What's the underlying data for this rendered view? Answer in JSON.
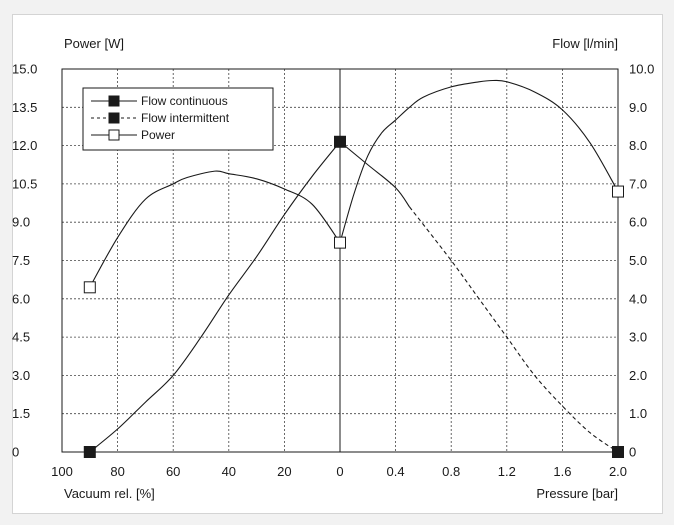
{
  "chart_data": {
    "type": "line",
    "y_left_label": "Power [W]",
    "y_right_label": "Flow [l/min]",
    "x_left_label": "Vacuum rel. [%]",
    "x_right_label": "Pressure [bar]",
    "y_left_ticks": [
      "0",
      "1.5",
      "3.0",
      "4.5",
      "6.0",
      "7.5",
      "9.0",
      "10.5",
      "12.0",
      "13.5",
      "15.0"
    ],
    "y_right_ticks": [
      "0",
      "1.0",
      "2.0",
      "3.0",
      "4.0",
      "5.0",
      "6.0",
      "7.0",
      "8.0",
      "9.0",
      "10.0"
    ],
    "x_ticks": [
      "100",
      "80",
      "60",
      "40",
      "20",
      "0",
      "0.4",
      "0.8",
      "1.2",
      "1.6",
      "2.0"
    ],
    "y_left_range": [
      0,
      15
    ],
    "y_right_range": [
      0,
      10
    ],
    "x_note": "Left half: vacuum rel. % from 100 to 0; right half: pressure bar from 0 to 2.0",
    "grid": true,
    "legend_position": "top-left",
    "series": [
      {
        "name": "Flow continuous",
        "axis": "right",
        "style": "solid",
        "marker": "filled-square",
        "segments": [
          {
            "side": "vacuum",
            "points": [
              [
                90,
                0
              ],
              [
                80,
                0.6
              ],
              [
                70,
                1.3
              ],
              [
                60,
                2.0
              ],
              [
                50,
                3.0
              ],
              [
                40,
                4.1
              ],
              [
                30,
                5.1
              ],
              [
                20,
                6.2
              ],
              [
                10,
                7.2
              ],
              [
                0,
                8.1
              ]
            ]
          },
          {
            "side": "pressure",
            "points": [
              [
                0,
                8.1
              ],
              [
                0.2,
                7.5
              ],
              [
                0.4,
                6.9
              ],
              [
                0.5,
                6.4
              ]
            ]
          }
        ],
        "markers": [
          {
            "side": "vacuum",
            "x": 90,
            "y": 0
          },
          {
            "side": "vacuum",
            "x": 0,
            "y": 8.1
          }
        ]
      },
      {
        "name": "Flow intermittent",
        "axis": "right",
        "style": "dashed",
        "marker": "filled-square",
        "segments": [
          {
            "side": "pressure",
            "points": [
              [
                0.5,
                6.4
              ],
              [
                0.8,
                5.0
              ],
              [
                1.0,
                4.0
              ],
              [
                1.2,
                3.0
              ],
              [
                1.4,
                2.0
              ],
              [
                1.6,
                1.2
              ],
              [
                1.8,
                0.5
              ],
              [
                2.0,
                0
              ]
            ]
          }
        ],
        "markers": [
          {
            "side": "pressure",
            "x": 2.0,
            "y": 0
          }
        ]
      },
      {
        "name": "Power",
        "axis": "left",
        "style": "solid",
        "marker": "open-square",
        "segments": [
          {
            "side": "vacuum",
            "points": [
              [
                90,
                6.45
              ],
              [
                80,
                8.4
              ],
              [
                70,
                9.9
              ],
              [
                60,
                10.5
              ],
              [
                55,
                10.75
              ],
              [
                45,
                11.0
              ],
              [
                40,
                10.9
              ],
              [
                30,
                10.7
              ],
              [
                20,
                10.3
              ],
              [
                10,
                9.7
              ],
              [
                0,
                8.2
              ]
            ]
          },
          {
            "side": "pressure",
            "points": [
              [
                0,
                8.2
              ],
              [
                0.1,
                10.1
              ],
              [
                0.2,
                11.6
              ],
              [
                0.3,
                12.5
              ],
              [
                0.4,
                13.0
              ],
              [
                0.5,
                13.5
              ],
              [
                0.6,
                13.9
              ],
              [
                0.8,
                14.3
              ],
              [
                1.0,
                14.5
              ],
              [
                1.1,
                14.55
              ],
              [
                1.2,
                14.5
              ],
              [
                1.4,
                14.1
              ],
              [
                1.6,
                13.4
              ],
              [
                1.8,
                12.1
              ],
              [
                2.0,
                10.2
              ]
            ]
          }
        ],
        "markers": [
          {
            "side": "vacuum",
            "x": 90,
            "y": 6.45
          },
          {
            "side": "vacuum",
            "x": 0,
            "y": 8.2
          },
          {
            "side": "pressure",
            "x": 2.0,
            "y": 10.2
          }
        ]
      }
    ]
  },
  "colors": {
    "line": "#1a1a1a",
    "grid": "#444444",
    "background": "#ffffff",
    "frame_bg": "#f2f2f2"
  }
}
